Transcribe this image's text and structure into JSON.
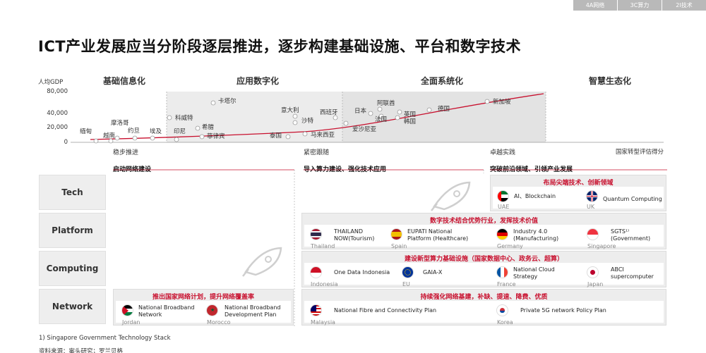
{
  "tabs": [
    "4A网络",
    "3C算力",
    "2I技术"
  ],
  "title": "ICT产业发展应当分阶段逐层推进，逐步构建基础设施、平台和数字技术",
  "chart_data": {
    "type": "line",
    "ylabel": "人均GDP",
    "yticks": [
      "80,000",
      "40,000",
      "20,000",
      "0"
    ],
    "stages": [
      "基础信息化",
      "应用数字化",
      "全面系统化",
      "智慧生态化"
    ],
    "xlabel": "国家转型评估得分",
    "countries": [
      {
        "name": "缅甸"
      },
      {
        "name": "越南"
      },
      {
        "name": "摩洛哥"
      },
      {
        "name": "约旦"
      },
      {
        "name": "埃及"
      },
      {
        "name": "印尼"
      },
      {
        "name": "科威特"
      },
      {
        "name": "希腊"
      },
      {
        "name": "菲律宾"
      },
      {
        "name": "卡塔尔"
      },
      {
        "name": "意大利"
      },
      {
        "name": "沙特"
      },
      {
        "name": "泰国"
      },
      {
        "name": "马来西亚"
      },
      {
        "name": "西班牙"
      },
      {
        "name": "爱沙尼亚"
      },
      {
        "name": "日本"
      },
      {
        "name": "阿联酋"
      },
      {
        "name": "法国"
      },
      {
        "name": "英国"
      },
      {
        "name": "韩国"
      },
      {
        "name": "德国"
      },
      {
        "name": "新加坡"
      }
    ]
  },
  "stages_detail": [
    {
      "sub": "稳步推进",
      "lead": "启动网络建设"
    },
    {
      "sub": "紧密跟随",
      "lead": "导入算力建设、强化技术应用"
    },
    {
      "sub": "卓越实践",
      "lead": "突破前沿领域、引领产业发展"
    }
  ],
  "rows": [
    "Tech",
    "Platform",
    "Computing",
    "Network"
  ],
  "panels": {
    "tech": {
      "title": "布局尖端技术、创新领域",
      "items": [
        {
          "desc": "AI、Blockchain",
          "country": "UAE"
        },
        {
          "desc": "Quantum Computing",
          "country": "UK"
        }
      ]
    },
    "platform": {
      "title": "数字技术结合优势行业，发挥技术价值",
      "items": [
        {
          "desc1": "THAILAND",
          "desc2": "NOW(Tourism)",
          "country": "Thailand"
        },
        {
          "desc1": "EUPATI National",
          "desc2": "Platform (Healthcare)",
          "country": "Spain"
        },
        {
          "desc1": "Industry 4.0",
          "desc2": "(Manufacturing)",
          "country": "Germany"
        },
        {
          "desc1": "SGTS¹⁾",
          "desc2": "(Government)",
          "country": "Singapore"
        }
      ]
    },
    "computing": {
      "title": "建设新型算力基础设施（国家数据中心、政务云、超算）",
      "items": [
        {
          "desc1": "One Data Indonesia",
          "desc2": "",
          "country": "Indonesia"
        },
        {
          "desc1": "GAIA-X",
          "desc2": "",
          "country": "EU"
        },
        {
          "desc1": "National Cloud",
          "desc2": "Strategy",
          "country": "France"
        },
        {
          "desc1": "ABCI",
          "desc2": "supercomputer",
          "country": "Japan"
        }
      ]
    },
    "network_left": {
      "title": "推出国家网络计划，提升网络覆盖率",
      "items": [
        {
          "desc1": "National Broadband",
          "desc2": "Network",
          "country": "Jordan"
        },
        {
          "desc1": "National Broadband",
          "desc2": "Development Plan",
          "country": "Morocco"
        }
      ]
    },
    "network_right": {
      "title": "持续强化网络基建，补缺、提速、降费、优质",
      "items": [
        {
          "desc1": "National Fibre and Connectivity Plan",
          "desc2": "",
          "country": "Malaysia"
        },
        {
          "desc1": "Private 5G network Policy Plan",
          "desc2": "",
          "country": "Korea"
        }
      ]
    }
  },
  "footnote": "1)   Singapore Government Technology Stack",
  "source": "资料来源：案头研究；罗兰贝格"
}
